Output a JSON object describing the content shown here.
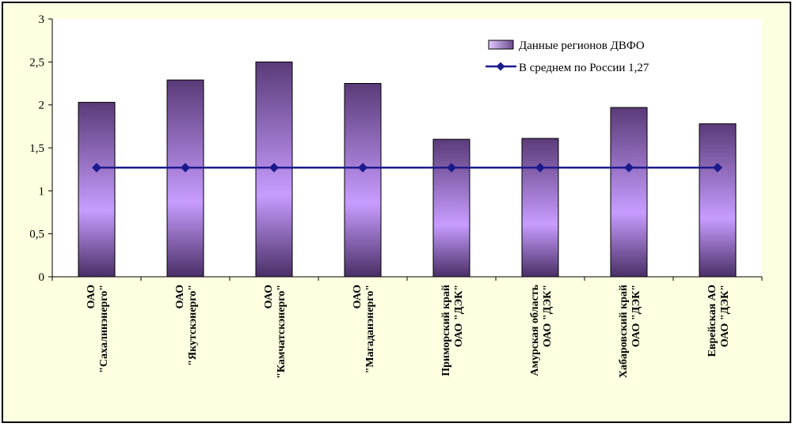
{
  "chart_data": {
    "type": "bar",
    "categories": [
      [
        "ОАО",
        "\"Сахалинэнерго\""
      ],
      [
        "ОАО",
        "\"Якутскэнерго\""
      ],
      [
        "ОАО",
        "\"Камчатскэнерго\""
      ],
      [
        "ОАО",
        "\"Магаданэнерго\""
      ],
      [
        "Приморский край",
        "ОАО \"ДЭК\""
      ],
      [
        "Амурская область",
        "ОАО \"ДЭК\""
      ],
      [
        "Хабаровский край",
        "ОАО \"ДЭК\""
      ],
      [
        "Еврейская АО",
        "ОАО \"ДЭК\""
      ]
    ],
    "series": [
      {
        "name": "Данные регионов ДВФО",
        "type": "bar",
        "values": [
          2.03,
          2.29,
          2.5,
          2.25,
          1.6,
          1.61,
          1.97,
          1.78
        ],
        "color": "#b488f0"
      },
      {
        "name": "В среднем по России 1,27",
        "type": "line",
        "values": [
          1.27,
          1.27,
          1.27,
          1.27,
          1.27,
          1.27,
          1.27,
          1.27
        ],
        "color": "#1a1a8c"
      }
    ],
    "yticks": [
      "0",
      "0,5",
      "1",
      "1,5",
      "2",
      "2,5",
      "3"
    ],
    "ylim": [
      0,
      3
    ],
    "grid": false,
    "legend": "top-right"
  }
}
